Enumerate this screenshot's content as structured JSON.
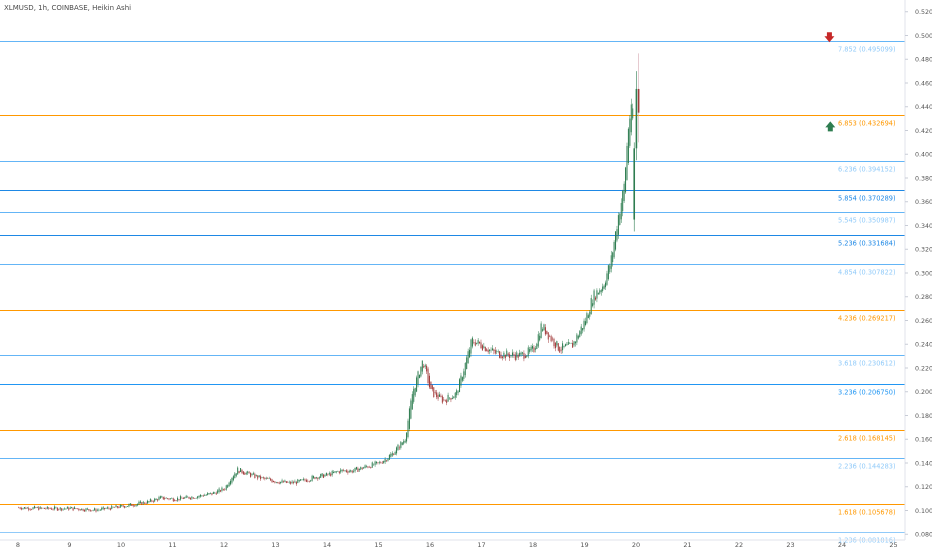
{
  "header": {
    "title": "XLMUSD, 1h, COINBASE, Heikin Ashi"
  },
  "chart_data": {
    "type": "candlestick",
    "symbol": "XLMUSD",
    "interval": "1h",
    "exchange": "COINBASE",
    "style": "Heikin Ashi",
    "ylim": [
      0.08,
      0.525
    ],
    "y_tick_labels": [
      "0.080000",
      "0.100000",
      "0.120000",
      "0.140000",
      "0.160000",
      "0.180000",
      "0.200000",
      "0.220000",
      "0.240000",
      "0.260000",
      "0.280000",
      "0.300000",
      "0.320000",
      "0.340000",
      "0.360000",
      "0.380000",
      "0.400000",
      "0.420000",
      "0.440000",
      "0.460000",
      "0.480000",
      "0.500000",
      "0.520000"
    ],
    "x_tick_labels": [
      "8",
      "9",
      "10",
      "11",
      "12",
      "13",
      "14",
      "15",
      "16",
      "17",
      "18",
      "19",
      "20",
      "21",
      "22",
      "23",
      "24",
      "25"
    ],
    "fib_levels": [
      {
        "label": "1.236 (0.081816)",
        "value": 0.081816,
        "color": "#90caf9",
        "text_color": "#90caf9",
        "bold": false
      },
      {
        "label": "1.618 (0.105678)",
        "value": 0.105678,
        "color": "#ff9800",
        "text_color": "#ff9800",
        "bold": false
      },
      {
        "label": "2.236 (0.144283)",
        "value": 0.144283,
        "color": "#64b5f6",
        "text_color": "#90caf9",
        "bold": false
      },
      {
        "label": "2.618 (0.168145)",
        "value": 0.168145,
        "color": "#ff9800",
        "text_color": "#ff9800",
        "bold": false
      },
      {
        "label": "3.236 (0.206750)",
        "value": 0.20675,
        "color": "#2196f3",
        "text_color": "#2196f3",
        "bold": false
      },
      {
        "label": "3.618 (0.230612)",
        "value": 0.230612,
        "color": "#64b5f6",
        "text_color": "#90caf9",
        "bold": false
      },
      {
        "label": "4.236 (0.269217)",
        "value": 0.269217,
        "color": "#ff9800",
        "text_color": "#ff9800",
        "bold": false
      },
      {
        "label": "4.854 (0.307822)",
        "value": 0.307822,
        "color": "#64b5f6",
        "text_color": "#90caf9",
        "bold": false
      },
      {
        "label": "5.236 (0.331684)",
        "value": 0.331684,
        "color": "#1e88e5",
        "text_color": "#1e88e5",
        "bold": false
      },
      {
        "label": "5.545 (0.350987)",
        "value": 0.350987,
        "color": "#64b5f6",
        "text_color": "#90caf9",
        "bold": false
      },
      {
        "label": "5.854 (0.370289)",
        "value": 0.370289,
        "color": "#1e88e5",
        "text_color": "#1e88e5",
        "bold": false
      },
      {
        "label": "6.236 (0.394152)",
        "value": 0.394152,
        "color": "#64b5f6",
        "text_color": "#90caf9",
        "bold": false
      },
      {
        "label": "6.853 (0.432694)",
        "value": 0.432694,
        "color": "#ff9800",
        "text_color": "#ff9800",
        "bold": false
      },
      {
        "label": "7.852 (0.495099)",
        "value": 0.495099,
        "color": "#64b5f6",
        "text_color": "#90caf9",
        "bold": false
      }
    ],
    "price_path": [
      [
        0,
        0.1025
      ],
      [
        1,
        0.1016
      ],
      [
        2,
        0.1018
      ],
      [
        3,
        0.1004
      ],
      [
        4,
        0.1034
      ],
      [
        5,
        0.1071
      ],
      [
        5.5,
        0.1106
      ],
      [
        6,
        0.1097
      ],
      [
        6.5,
        0.1106
      ],
      [
        7,
        0.1124
      ],
      [
        7.5,
        0.1141
      ],
      [
        8,
        0.1185
      ],
      [
        8.2,
        0.1265
      ],
      [
        8.5,
        0.1344
      ],
      [
        9,
        0.13
      ],
      [
        9.5,
        0.1265
      ],
      [
        10,
        0.1247
      ],
      [
        10.5,
        0.1229
      ],
      [
        11,
        0.1247
      ],
      [
        11.5,
        0.1282
      ],
      [
        12,
        0.13
      ],
      [
        12.5,
        0.1335
      ],
      [
        13,
        0.1335
      ],
      [
        13.5,
        0.1371
      ],
      [
        14,
        0.1397
      ],
      [
        14.5,
        0.1476
      ],
      [
        15,
        0.16
      ],
      [
        15.3,
        0.2
      ],
      [
        15.7,
        0.2265
      ],
      [
        16,
        0.2
      ],
      [
        16.5,
        0.1925
      ],
      [
        17,
        0.1985
      ],
      [
        17.3,
        0.22
      ],
      [
        17.6,
        0.2434
      ],
      [
        18,
        0.239
      ],
      [
        18.5,
        0.2325
      ],
      [
        19,
        0.231
      ],
      [
        19.5,
        0.2305
      ],
      [
        20,
        0.2354
      ],
      [
        20.3,
        0.256
      ],
      [
        20.7,
        0.244
      ],
      [
        21,
        0.236
      ],
      [
        21.5,
        0.239
      ],
      [
        22,
        0.26
      ],
      [
        22.3,
        0.28
      ],
      [
        22.7,
        0.29
      ],
      [
        23,
        0.31
      ],
      [
        23.3,
        0.35
      ],
      [
        23.5,
        0.37
      ],
      [
        23.7,
        0.43
      ],
      [
        23.9,
        0.44
      ]
    ],
    "arrows": [
      {
        "type": "down",
        "color": "#c62828",
        "price": 0.4985,
        "slot": 23.55
      },
      {
        "type": "up",
        "color": "#2e7d50",
        "price": 0.4235,
        "slot": 24.4
      }
    ]
  }
}
